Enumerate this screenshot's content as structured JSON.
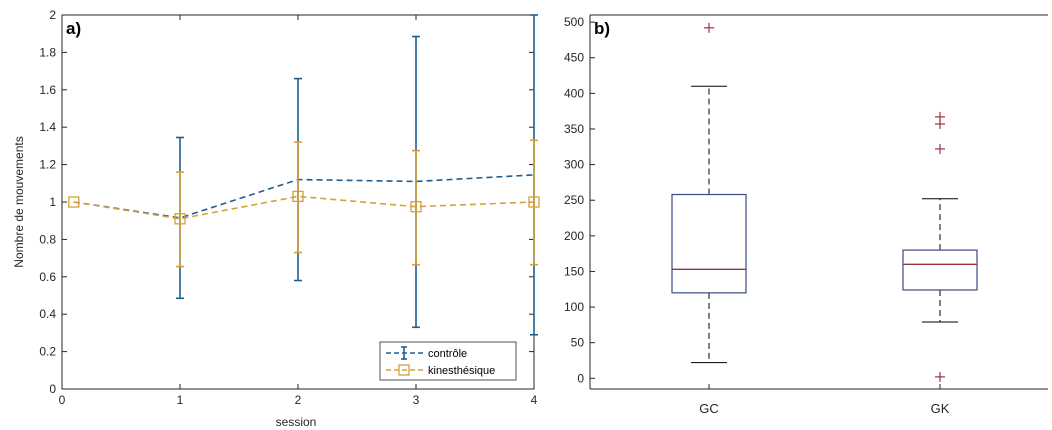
{
  "chart_data": [
    {
      "panel_label": "a)",
      "type": "line",
      "xlabel": "session",
      "ylabel": "Nombre de mouvements",
      "xlim": [
        0,
        4
      ],
      "ylim": [
        0,
        2.0
      ],
      "x_ticks": [
        "0",
        "1",
        "2",
        "3",
        "4"
      ],
      "y_ticks": [
        "0",
        "0.2",
        "0.4",
        "0.6",
        "0.8",
        "1",
        "1.2",
        "1.4",
        "1.6",
        "1.8",
        "2"
      ],
      "grid": false,
      "legend_position": "bottom-right",
      "series": [
        {
          "name": "contrôle",
          "color": "#1f5f8f",
          "line_style": "dashed",
          "marker": "none",
          "x": [
            0.1,
            1,
            2,
            3,
            4
          ],
          "y": [
            1.0,
            0.915,
            1.12,
            1.11,
            1.145
          ],
          "err_low": [
            null,
            0.485,
            0.58,
            0.33,
            0.29
          ],
          "err_high": [
            null,
            1.345,
            1.66,
            1.885,
            2.0
          ]
        },
        {
          "name": "kinesthésique",
          "color": "#d4a03a",
          "line_style": "dashed",
          "marker": "square",
          "x": [
            0.1,
            1,
            2,
            3,
            4
          ],
          "y": [
            1.0,
            0.91,
            1.03,
            0.975,
            1.0
          ],
          "err_low": [
            null,
            0.655,
            0.73,
            0.665,
            0.665
          ],
          "err_high": [
            null,
            1.16,
            1.32,
            1.275,
            1.33
          ]
        }
      ]
    },
    {
      "panel_label": "b)",
      "type": "box",
      "categories": [
        "GC",
        "GK"
      ],
      "ylim": [
        -15,
        510
      ],
      "y_ticks": [
        "0",
        "50",
        "100",
        "150",
        "200",
        "250",
        "300",
        "350",
        "400",
        "450",
        "500"
      ],
      "grid": false,
      "box_color": "#3b4a86",
      "median_color": "#a03040",
      "outlier_color": "#a03040",
      "whisker_style": "dashed",
      "boxes": [
        {
          "name": "GC",
          "whisker_low": 22,
          "q1": 120,
          "median": 153,
          "q3": 258,
          "whisker_high": 410,
          "outliers": [
            492
          ]
        },
        {
          "name": "GK",
          "whisker_low": 79,
          "q1": 124,
          "median": 160,
          "q3": 180,
          "whisker_high": 252,
          "outliers": [
            367,
            357,
            322,
            2
          ]
        }
      ]
    }
  ]
}
